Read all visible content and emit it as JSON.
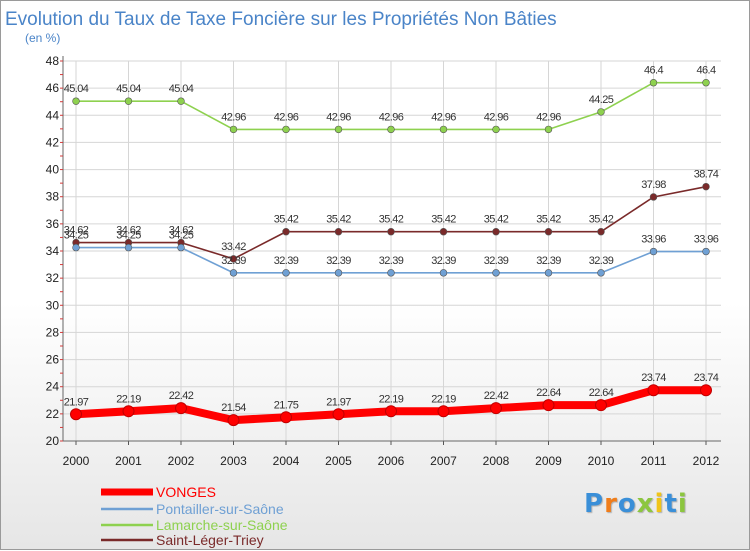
{
  "chart_data": {
    "type": "line",
    "title": "Evolution du Taux de Taxe Foncière sur les Propriétés Non Bâties",
    "subtitle": "(en %)",
    "xlabel": "",
    "ylabel": "",
    "ylim": [
      20,
      48
    ],
    "yticks": [
      "20",
      "22",
      "24",
      "26",
      "28",
      "30",
      "32",
      "34",
      "36",
      "38",
      "40",
      "42",
      "44",
      "46",
      "48"
    ],
    "categories": [
      "2000",
      "2001",
      "2002",
      "2003",
      "2004",
      "2005",
      "2006",
      "2007",
      "2008",
      "2009",
      "2010",
      "2011",
      "2012"
    ],
    "grid": true,
    "legend_position": "bottom-left",
    "series": [
      {
        "name": "VONGES",
        "color": "#ff0000",
        "values": [
          21.97,
          22.19,
          22.42,
          21.54,
          21.75,
          21.97,
          22.19,
          22.19,
          22.42,
          22.64,
          22.64,
          23.74,
          23.74
        ],
        "labels": [
          "21.97",
          "22.19",
          "22.42",
          "21.54",
          "21.75",
          "21.97",
          "22.19",
          "22.19",
          "22.42",
          "22.64",
          "22.64",
          "23.74",
          "23.74"
        ]
      },
      {
        "name": "Pontailler-sur-Saône",
        "color": "#6fa0d4",
        "values": [
          34.25,
          34.25,
          34.25,
          32.39,
          32.39,
          32.39,
          32.39,
          32.39,
          32.39,
          32.39,
          32.39,
          33.96,
          33.96
        ],
        "labels": [
          "34.25",
          "34.25",
          "34.25",
          "32.39",
          "32.39",
          "32.39",
          "32.39",
          "32.39",
          "32.39",
          "32.39",
          "32.39",
          "33.96",
          "33.96"
        ]
      },
      {
        "name": "Lamarche-sur-Saône",
        "color": "#8ed14f",
        "values": [
          45.04,
          45.04,
          45.04,
          42.96,
          42.96,
          42.96,
          42.96,
          42.96,
          42.96,
          42.96,
          44.25,
          46.4,
          46.4
        ],
        "labels": [
          "45.04",
          "45.04",
          "45.04",
          "42.96",
          "42.96",
          "42.96",
          "42.96",
          "42.96",
          "42.96",
          "42.96",
          "44.25",
          "46.4",
          "46.4"
        ]
      },
      {
        "name": "Saint-Léger-Triey",
        "color": "#7a2a2a",
        "values": [
          34.62,
          34.62,
          34.62,
          33.42,
          35.42,
          35.42,
          35.42,
          35.42,
          35.42,
          35.42,
          35.42,
          37.98,
          38.74
        ],
        "labels": [
          "34.62",
          "34.62",
          "34.62",
          "33.42",
          "35.42",
          "35.42",
          "35.42",
          "35.42",
          "35.42",
          "35.42",
          "35.42",
          "37.98",
          "38.74"
        ]
      }
    ]
  },
  "logo": {
    "letters": [
      "P",
      "r",
      "o",
      "x",
      "i",
      "t",
      "i"
    ],
    "colors": [
      "#3a8fd8",
      "#f07d1a",
      "#3a8fd8",
      "#8cc63f",
      "#f0c419",
      "#3a8fd8",
      "#8cc63f"
    ]
  }
}
